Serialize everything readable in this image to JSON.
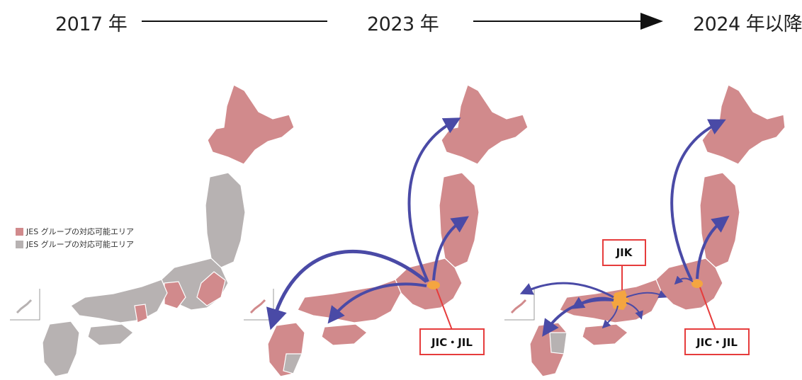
{
  "timeline": {
    "year_1": "2017 年",
    "year_2": "2023 年",
    "year_3": "2024 年以降"
  },
  "legend": [
    {
      "label": "JES グループの対応可能エリア",
      "color": "#d18a8c"
    },
    {
      "label": "JES グループの対応可能エリア",
      "color": "#b7b2b2"
    }
  ],
  "colors": {
    "covered": "#d18a8c",
    "uncovered": "#b7b2b2",
    "arrow": "#4a4aa6",
    "base": "#f4a540",
    "callout_border": "#e63c3c"
  },
  "callouts": {
    "map2_base": "JIC・JIL",
    "map3_base_east": "JIC・JIL",
    "map3_base_west": "JIK"
  }
}
